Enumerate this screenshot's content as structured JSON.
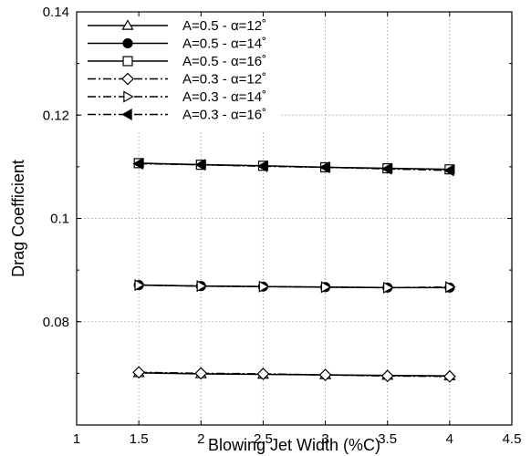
{
  "chart_data": {
    "type": "line",
    "title": "",
    "xlabel": "Blowing Jet Width (%C)",
    "ylabel": "Drag Coefficient",
    "xlim": [
      1,
      4.5
    ],
    "ylim": [
      0.06,
      0.14
    ],
    "xticks": [
      1,
      1.5,
      2,
      2.5,
      3,
      3.5,
      4,
      4.5
    ],
    "xtick_labels": [
      "1",
      "1.5",
      "2",
      "2.5",
      "3",
      "3.5",
      "4",
      "4.5"
    ],
    "yticks": [
      0.08,
      0.1,
      0.12,
      0.14
    ],
    "ytick_labels": [
      "0.08",
      "0.1",
      "0.12",
      "0.14"
    ],
    "grid": true,
    "legend_position": "top-left",
    "x": [
      1.5,
      2,
      2.5,
      3,
      3.5,
      4
    ],
    "series": [
      {
        "name": "A=0.5 - α=12˚",
        "line_style": "solid",
        "marker": "triangle-up-open",
        "values": [
          0.0701,
          0.0699,
          0.0698,
          0.0697,
          0.0696,
          0.0695
        ]
      },
      {
        "name": "A=0.5 - α=14˚",
        "line_style": "solid",
        "marker": "circle-filled",
        "values": [
          0.0871,
          0.0869,
          0.0868,
          0.0867,
          0.0866,
          0.0866
        ]
      },
      {
        "name": "A=0.5 - α=16˚",
        "line_style": "solid",
        "marker": "square-open",
        "values": [
          0.1107,
          0.1104,
          0.1102,
          0.1099,
          0.1097,
          0.1095
        ]
      },
      {
        "name": "A=0.3 - α=12˚",
        "line_style": "dash-dot",
        "marker": "diamond-open",
        "values": [
          0.0702,
          0.07,
          0.0699,
          0.0697,
          0.0695,
          0.0694
        ]
      },
      {
        "name": "A=0.3 - α=14˚",
        "line_style": "dash-dot",
        "marker": "triangle-right-open",
        "values": [
          0.0871,
          0.0869,
          0.0868,
          0.0867,
          0.0866,
          0.0867
        ]
      },
      {
        "name": "A=0.3 - α=16˚",
        "line_style": "dash-dot",
        "marker": "triangle-left-filled",
        "values": [
          0.1106,
          0.1104,
          0.1101,
          0.1099,
          0.1096,
          0.1093
        ]
      }
    ],
    "colors": {
      "line": "#000000",
      "grid": "#bdbdbd",
      "axis": "#000000",
      "background": "#ffffff"
    }
  }
}
